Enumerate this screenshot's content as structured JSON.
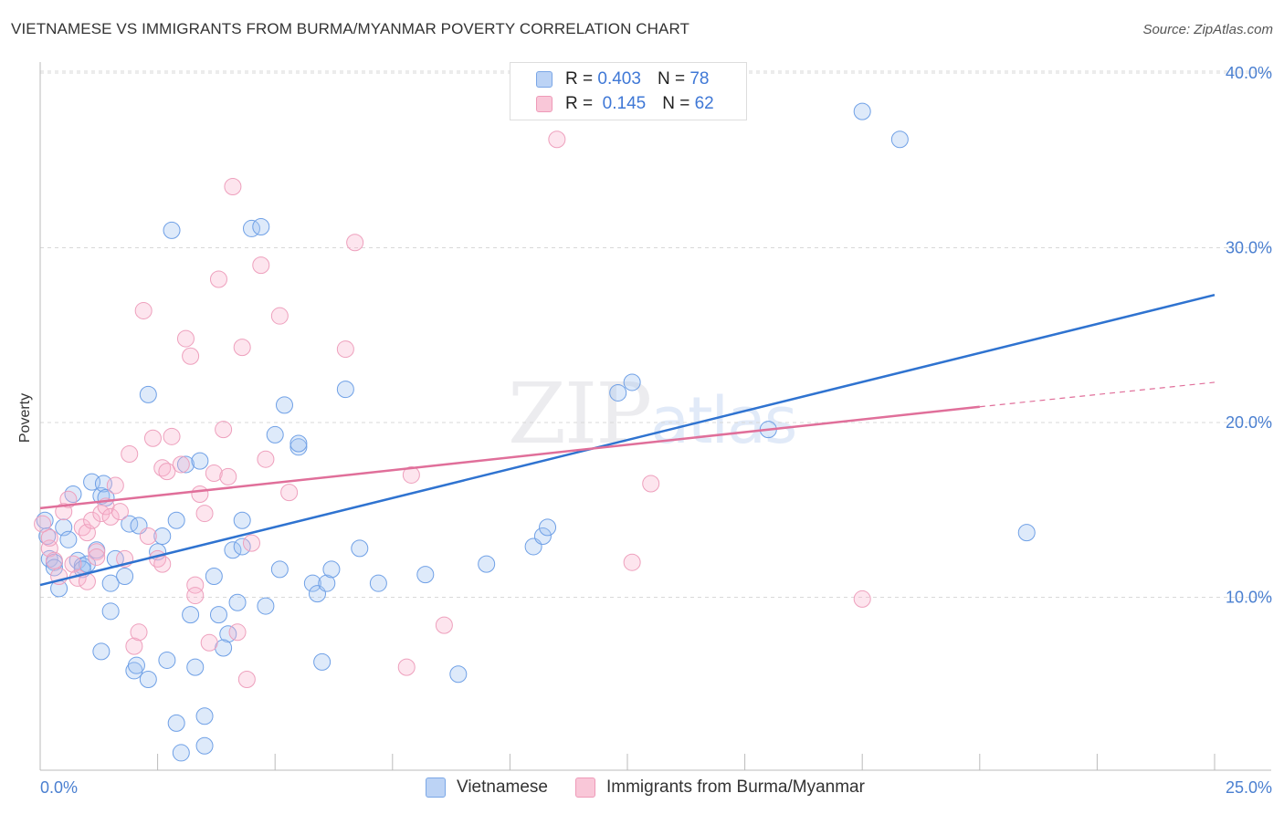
{
  "title": "VIETNAMESE VS IMMIGRANTS FROM BURMA/MYANMAR POVERTY CORRELATION CHART",
  "source": "Source: ZipAtlas.com",
  "colors": {
    "blue": "#6fa0e6",
    "blue_line": "#2f73d0",
    "pink": "#f0a0bc",
    "pink_line": "#e06f9a",
    "tick": "#4a7fd0"
  },
  "legend": {
    "r_label": "R =",
    "n_label": "N =",
    "rows": [
      {
        "r": "0.403",
        "n": "78"
      },
      {
        "r": "0.145",
        "n": "62"
      }
    ]
  },
  "bottom_legend": [
    "Vietnamese",
    "Immigrants from Burma/Myanmar"
  ],
  "watermark": {
    "zip": "ZIP",
    "atlas": "atlas"
  },
  "chart_data": {
    "type": "scatter",
    "title": "VIETNAMESE VS IMMIGRANTS FROM BURMA/MYANMAR POVERTY CORRELATION CHART",
    "xlabel": "",
    "ylabel": "Poverty",
    "xlim": [
      0,
      25
    ],
    "ylim": [
      0,
      42
    ],
    "x_tick_labels": [
      "0.0%",
      "25.0%"
    ],
    "y_ticks": [
      10,
      20,
      30,
      40
    ],
    "y_tick_labels": [
      "10.0%",
      "20.0%",
      "30.0%",
      "40.0%"
    ],
    "grid": true,
    "legend_position": "top-center",
    "series": [
      {
        "name": "Vietnamese",
        "r": 0.403,
        "n": 78,
        "trend": {
          "x": [
            0,
            25
          ],
          "y": [
            10.7,
            27.3
          ]
        },
        "points": [
          [
            0.1,
            14.4
          ],
          [
            0.15,
            13.5
          ],
          [
            0.2,
            12.2
          ],
          [
            0.3,
            12.0
          ],
          [
            0.4,
            10.5
          ],
          [
            0.5,
            14.0
          ],
          [
            0.6,
            13.3
          ],
          [
            0.7,
            15.9
          ],
          [
            0.8,
            12.1
          ],
          [
            0.9,
            11.8
          ],
          [
            1.0,
            11.9
          ],
          [
            1.1,
            16.6
          ],
          [
            1.2,
            12.7
          ],
          [
            1.3,
            15.8
          ],
          [
            1.35,
            16.5
          ],
          [
            1.5,
            9.2
          ],
          [
            1.5,
            10.8
          ],
          [
            1.6,
            12.2
          ],
          [
            1.8,
            11.2
          ],
          [
            1.9,
            14.2
          ],
          [
            2.0,
            5.8
          ],
          [
            2.05,
            6.1
          ],
          [
            2.1,
            14.1
          ],
          [
            2.3,
            5.3
          ],
          [
            2.3,
            21.6
          ],
          [
            2.5,
            12.6
          ],
          [
            2.6,
            13.5
          ],
          [
            2.7,
            6.4
          ],
          [
            2.8,
            31.0
          ],
          [
            2.9,
            14.4
          ],
          [
            3.0,
            1.1
          ],
          [
            3.1,
            17.6
          ],
          [
            3.2,
            9.0
          ],
          [
            3.3,
            6.0
          ],
          [
            3.4,
            17.8
          ],
          [
            3.5,
            1.5
          ],
          [
            3.5,
            3.2
          ],
          [
            3.7,
            11.2
          ],
          [
            4.1,
            12.7
          ],
          [
            4.2,
            9.7
          ],
          [
            4.3,
            14.4
          ],
          [
            4.5,
            31.1
          ],
          [
            4.7,
            31.2
          ],
          [
            4.8,
            9.5
          ],
          [
            5.0,
            19.3
          ],
          [
            5.1,
            11.6
          ],
          [
            5.2,
            21.0
          ],
          [
            5.5,
            18.6
          ],
          [
            5.5,
            18.8
          ],
          [
            5.8,
            10.8
          ],
          [
            5.9,
            10.2
          ],
          [
            6.1,
            10.8
          ],
          [
            6.2,
            11.6
          ],
          [
            6.5,
            21.9
          ],
          [
            6.8,
            12.8
          ],
          [
            7.2,
            10.8
          ],
          [
            8.2,
            11.3
          ],
          [
            8.9,
            5.6
          ],
          [
            9.5,
            11.9
          ],
          [
            10.5,
            12.9
          ],
          [
            10.7,
            13.5
          ],
          [
            10.8,
            14.0
          ],
          [
            1.4,
            15.7
          ],
          [
            0.9,
            11.6
          ],
          [
            2.9,
            2.8
          ],
          [
            4.0,
            7.9
          ],
          [
            4.3,
            12.9
          ],
          [
            3.8,
            9.0
          ],
          [
            6.0,
            6.3
          ],
          [
            12.3,
            21.7
          ],
          [
            12.6,
            22.3
          ],
          [
            15.5,
            19.6
          ],
          [
            17.5,
            37.8
          ],
          [
            18.3,
            36.2
          ],
          [
            21.0,
            13.7
          ],
          [
            3.9,
            7.1
          ],
          [
            0.3,
            11.7
          ],
          [
            1.3,
            6.9
          ]
        ]
      },
      {
        "name": "Immigrants from Burma/Myanmar",
        "r": 0.145,
        "n": 62,
        "trend": {
          "x": [
            0,
            20
          ],
          "y": [
            15.1,
            20.9
          ]
        },
        "trend_dashed": {
          "x": [
            20,
            25
          ],
          "y": [
            20.9,
            22.3
          ]
        },
        "points": [
          [
            0.05,
            14.2
          ],
          [
            0.2,
            12.8
          ],
          [
            0.3,
            12.1
          ],
          [
            0.4,
            11.2
          ],
          [
            0.5,
            14.9
          ],
          [
            0.6,
            15.6
          ],
          [
            0.7,
            11.9
          ],
          [
            0.8,
            11.1
          ],
          [
            0.9,
            14.0
          ],
          [
            1.0,
            13.7
          ],
          [
            1.1,
            14.4
          ],
          [
            1.2,
            12.6
          ],
          [
            1.3,
            14.8
          ],
          [
            1.4,
            15.2
          ],
          [
            1.5,
            14.6
          ],
          [
            1.6,
            16.4
          ],
          [
            1.7,
            14.9
          ],
          [
            1.8,
            12.2
          ],
          [
            1.9,
            18.2
          ],
          [
            2.0,
            7.2
          ],
          [
            2.1,
            8.0
          ],
          [
            2.2,
            26.4
          ],
          [
            2.3,
            13.5
          ],
          [
            2.4,
            19.1
          ],
          [
            2.5,
            12.2
          ],
          [
            2.6,
            17.4
          ],
          [
            2.7,
            17.2
          ],
          [
            2.8,
            19.2
          ],
          [
            3.0,
            17.6
          ],
          [
            3.1,
            24.8
          ],
          [
            3.2,
            23.8
          ],
          [
            3.3,
            10.7
          ],
          [
            3.4,
            15.9
          ],
          [
            3.5,
            14.8
          ],
          [
            3.6,
            7.4
          ],
          [
            3.7,
            17.1
          ],
          [
            3.8,
            28.2
          ],
          [
            3.9,
            19.6
          ],
          [
            4.1,
            33.5
          ],
          [
            4.2,
            8.0
          ],
          [
            4.3,
            24.3
          ],
          [
            4.4,
            5.3
          ],
          [
            4.5,
            13.1
          ],
          [
            4.7,
            29.0
          ],
          [
            4.8,
            17.9
          ],
          [
            5.1,
            26.1
          ],
          [
            5.3,
            16.0
          ],
          [
            6.5,
            24.2
          ],
          [
            6.7,
            30.3
          ],
          [
            7.8,
            6.0
          ],
          [
            7.9,
            17.0
          ],
          [
            8.6,
            8.4
          ],
          [
            11.0,
            36.2
          ],
          [
            12.6,
            12.0
          ],
          [
            13.0,
            16.5
          ],
          [
            17.5,
            9.9
          ],
          [
            3.3,
            10.1
          ],
          [
            0.2,
            13.4
          ],
          [
            1.2,
            12.3
          ],
          [
            4.0,
            16.9
          ],
          [
            2.6,
            11.9
          ],
          [
            1.0,
            10.9
          ]
        ]
      }
    ]
  }
}
